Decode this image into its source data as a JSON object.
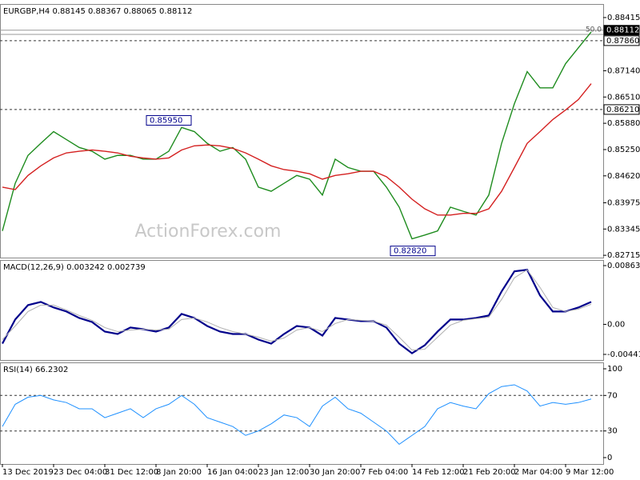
{
  "chart_data": [
    {
      "type": "line",
      "title": "EURGBP,H4  0.88145 0.88367 0.88065 0.88112",
      "watermark": "ActionForex.com",
      "ylim": [
        0.8266,
        0.8874
      ],
      "yticks": [
        0.88415,
        {
          "value": 0.8714,
          "label": "0.87140"
        },
        {
          "value": 0.8651,
          "label": "0.86510"
        },
        {
          "value": 0.8588,
          "label": "0.85880"
        },
        {
          "value": 0.8525,
          "label": "0.85250"
        },
        {
          "value": 0.8462,
          "label": "0.84620"
        },
        0.83975,
        0.83345,
        0.82715
      ],
      "levels": [
        {
          "value": 0.88112,
          "label": "0.88112",
          "style": "current"
        },
        {
          "value": 0.8786,
          "label": "0.87860",
          "style": "dashed"
        },
        {
          "value": 0.8621,
          "label": "0.86210",
          "style": "dashed"
        }
      ],
      "fib_level": {
        "value": 0.8801,
        "label": "50.0"
      },
      "annotations": [
        {
          "value": 0.8595,
          "label": "0.85950"
        },
        {
          "value": 0.8282,
          "label": "0.82820"
        }
      ],
      "series": [
        {
          "name": "EURGBP",
          "color": "#1e8c1e",
          "values": [
            0.833,
            0.8444,
            0.8511,
            0.854,
            0.8568,
            0.8549,
            0.853,
            0.8521,
            0.8502,
            0.8511,
            0.8511,
            0.8502,
            0.8502,
            0.8521,
            0.8578,
            0.8568,
            0.854,
            0.8521,
            0.853,
            0.8502,
            0.8435,
            0.8425,
            0.8444,
            0.8463,
            0.8454,
            0.8416,
            0.8502,
            0.8482,
            0.8473,
            0.8473,
            0.8435,
            0.8387,
            0.8311,
            0.832,
            0.833,
            0.8387,
            0.8377,
            0.8368,
            0.8416,
            0.854,
            0.8635,
            0.8712,
            0.8673,
            0.8673,
            0.8731,
            0.8769,
            0.8807
          ]
        },
        {
          "name": "MA",
          "color": "#d42020",
          "values": [
            0.8435,
            0.8429,
            0.8463,
            0.8486,
            0.8505,
            0.8517,
            0.8521,
            0.8524,
            0.8521,
            0.8517,
            0.8509,
            0.8505,
            0.8502,
            0.8505,
            0.8524,
            0.8534,
            0.8536,
            0.8534,
            0.8528,
            0.8517,
            0.8502,
            0.8486,
            0.8477,
            0.8473,
            0.8467,
            0.8454,
            0.8463,
            0.8467,
            0.8473,
            0.8473,
            0.846,
            0.8435,
            0.8406,
            0.8383,
            0.8368,
            0.8368,
            0.8372,
            0.8372,
            0.8383,
            0.8425,
            0.8482,
            0.854,
            0.8568,
            0.8597,
            0.862,
            0.8645,
            0.8683
          ]
        }
      ]
    },
    {
      "type": "line",
      "title": "MACD(12,26,9) 0.003242 0.002739",
      "ylim": [
        -0.00524,
        0.00946
      ],
      "yticks": [
        0.008635,
        {
          "value": 0,
          "label": "0.00"
        },
        -0.004415
      ],
      "series": [
        {
          "name": "MACD",
          "color": "#00008b",
          "width": 2.2,
          "values": [
            -0.00283,
            0.00071,
            0.00283,
            0.0033,
            0.00248,
            0.00189,
            0.00094,
            0.00035,
            -0.00106,
            -0.00142,
            -0.00047,
            -0.00071,
            -0.00106,
            -0.00047,
            0.00153,
            0.00094,
            -0.00024,
            -0.00106,
            -0.00142,
            -0.00142,
            -0.00224,
            -0.00283,
            -0.00142,
            -0.00024,
            -0.00047,
            -0.00165,
            0.00094,
            0.00071,
            0.00047,
            0.00047,
            -0.00047,
            -0.00283,
            -0.00425,
            -0.00307,
            -0.00106,
            0.00071,
            0.00071,
            0.00094,
            0.0013,
            0.00484,
            0.00779,
            0.00802,
            0.00425,
            0.00189,
            0.00189,
            0.00248,
            0.0033
          ]
        },
        {
          "name": "Signal",
          "color": "#b0b0b0",
          "width": 1,
          "values": [
            -0.00224,
            -0.00024,
            0.00189,
            0.00283,
            0.00283,
            0.00212,
            0.0013,
            0.00059,
            -0.00047,
            -0.00106,
            -0.00083,
            -0.00071,
            -0.00083,
            -0.00071,
            0.00071,
            0.00094,
            0.00035,
            -0.00047,
            -0.00106,
            -0.00142,
            -0.00189,
            -0.00248,
            -0.00201,
            -0.00083,
            -0.00047,
            -0.00106,
            0.00012,
            0.00071,
            0.00059,
            0.00047,
            -0.00012,
            -0.00189,
            -0.00378,
            -0.00366,
            -0.00189,
            -0.00012,
            0.00059,
            0.00083,
            0.00106,
            0.00366,
            0.00684,
            0.00802,
            0.00543,
            0.00248,
            0.00189,
            0.00224,
            0.00295
          ]
        }
      ]
    },
    {
      "type": "line",
      "title": "RSI(14) 66.2302",
      "ylim": [
        -7.2,
        107.2
      ],
      "yticks": [
        100,
        70,
        30,
        0
      ],
      "levels": [
        {
          "value": 70,
          "style": "dashed"
        },
        {
          "value": 30,
          "style": "dashed"
        }
      ],
      "categories": [
        "13 Dec 2019",
        null,
        null,
        null,
        "23 Dec 04:00",
        null,
        null,
        null,
        "31 Dec 12:00",
        null,
        null,
        null,
        "8 Jan 20:00",
        null,
        null,
        null,
        "16 Jan 04:00",
        null,
        null,
        null,
        "23 Jan 12:00",
        null,
        null,
        null,
        "30 Jan 20:00",
        null,
        null,
        null,
        "7 Feb 04:00",
        null,
        null,
        null,
        "14 Feb 12:00",
        null,
        null,
        null,
        "21 Feb 20:00",
        null,
        null,
        null,
        "2 Mar 04:00",
        null,
        null,
        null,
        "9 Mar 12:00",
        null,
        null
      ],
      "series": [
        {
          "name": "RSI",
          "color": "#1e90ff",
          "width": 1,
          "values": [
            35,
            60,
            68,
            70,
            65,
            62,
            55,
            55,
            45,
            50,
            55,
            45,
            55,
            60,
            70,
            60,
            45,
            40,
            35,
            25,
            30,
            38,
            48,
            45,
            35,
            58,
            68,
            55,
            50,
            40,
            30,
            15,
            25,
            35,
            55,
            62,
            58,
            55,
            72,
            80,
            82,
            75,
            58,
            62,
            60,
            62,
            66
          ]
        }
      ]
    }
  ]
}
